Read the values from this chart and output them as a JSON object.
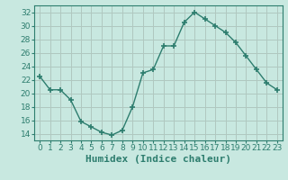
{
  "x": [
    0,
    1,
    2,
    3,
    4,
    5,
    6,
    7,
    8,
    9,
    10,
    11,
    12,
    13,
    14,
    15,
    16,
    17,
    18,
    19,
    20,
    21,
    22,
    23
  ],
  "y": [
    22.5,
    20.5,
    20.5,
    19.0,
    15.8,
    15.0,
    14.2,
    13.8,
    14.5,
    18.0,
    23.0,
    23.5,
    27.0,
    27.0,
    30.5,
    32.0,
    31.0,
    30.0,
    29.0,
    27.5,
    25.5,
    23.5,
    21.5,
    20.5
  ],
  "line_color": "#2d7d6e",
  "marker": "+",
  "marker_size": 5,
  "bg_color": "#c8e8e0",
  "grid_color": "#b0c8c0",
  "xlabel": "Humidex (Indice chaleur)",
  "ylim": [
    13,
    33
  ],
  "xlim": [
    -0.5,
    23.5
  ],
  "yticks": [
    14,
    16,
    18,
    20,
    22,
    24,
    26,
    28,
    30,
    32
  ],
  "xticks": [
    0,
    1,
    2,
    3,
    4,
    5,
    6,
    7,
    8,
    9,
    10,
    11,
    12,
    13,
    14,
    15,
    16,
    17,
    18,
    19,
    20,
    21,
    22,
    23
  ],
  "xtick_labels": [
    "0",
    "1",
    "2",
    "3",
    "4",
    "5",
    "6",
    "7",
    "8",
    "9",
    "10",
    "11",
    "12",
    "13",
    "14",
    "15",
    "16",
    "17",
    "18",
    "19",
    "20",
    "21",
    "22",
    "23"
  ],
  "line_width": 1.0,
  "tick_label_fontsize": 6.5,
  "xlabel_fontsize": 8,
  "marker_linewidth": 1.2
}
